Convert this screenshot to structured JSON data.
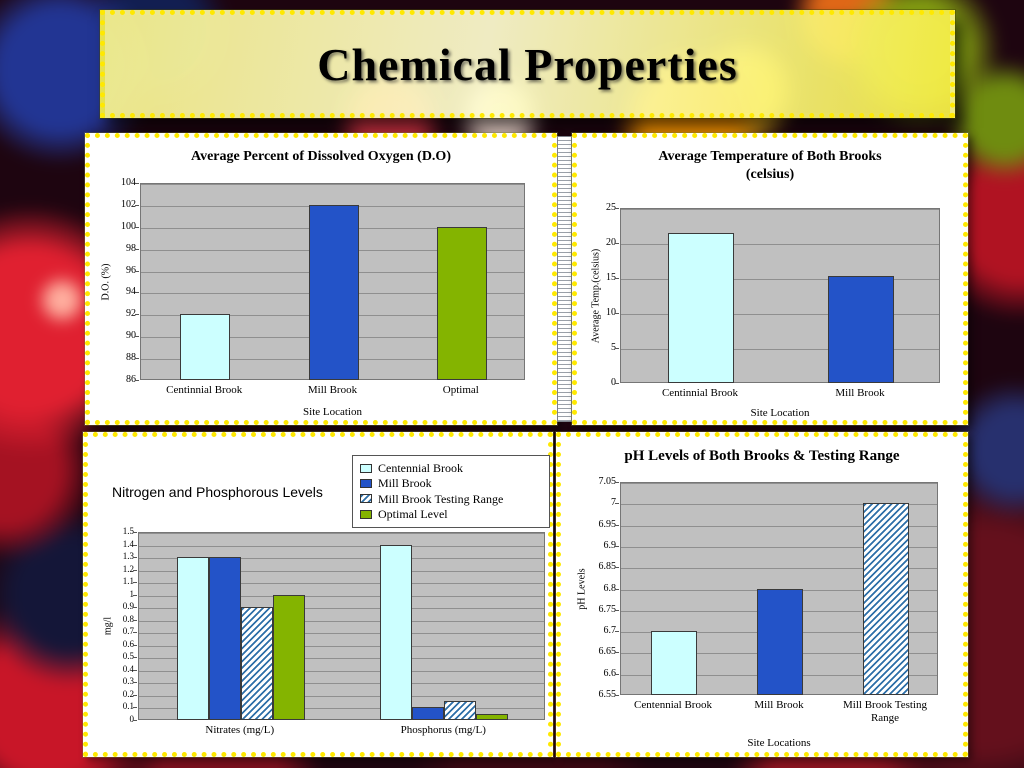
{
  "slide": {
    "title": "Chemical Properties"
  },
  "colors": {
    "centennial": "#CCFFFF",
    "mill": "#2353C8",
    "optimal": "#84B400",
    "hatch": "#2E6FA8",
    "panel_border": "#FFE900",
    "plot_bg": "#C0C0C0"
  },
  "chart_data": [
    {
      "type": "bar",
      "title": "Average Percent of Dissolved Oxygen (D.O)",
      "categories": [
        "Centinnial Brook",
        "Mill Brook",
        "Optimal"
      ],
      "series": [
        {
          "name": "",
          "values": [
            92,
            102,
            100
          ],
          "colors": [
            "#CCFFFF",
            "#2353C8",
            "#84B400"
          ]
        }
      ],
      "ylabel": "D.O. (%)",
      "xlabel": "Site Location",
      "ylim": [
        86,
        104
      ],
      "ystep": 2,
      "grid": true,
      "legend": false
    },
    {
      "type": "bar",
      "title": "Average Temperature of Both Brooks\n(celsius)",
      "categories": [
        "Centinnial Brook",
        "Mill Brook"
      ],
      "series": [
        {
          "name": "",
          "values": [
            21.4,
            15.3
          ],
          "colors": [
            "#CCFFFF",
            "#2353C8"
          ]
        }
      ],
      "ylabel": "Average Temp.(celsius)",
      "xlabel": "Site Location",
      "ylim": [
        0,
        25
      ],
      "ystep": 5,
      "grid": true,
      "legend": false
    },
    {
      "type": "bar",
      "title": "Nitrogen and Phosphorous Levels",
      "categories": [
        "Nitrates (mg/L)",
        "Phosphorus (mg/L)"
      ],
      "series": [
        {
          "name": "Centennial Brook",
          "color": "#CCFFFF",
          "values": [
            1.3,
            1.4
          ]
        },
        {
          "name": "Mill Brook",
          "color": "#2353C8",
          "values": [
            1.3,
            0.1
          ]
        },
        {
          "name": "Mill Brook Testing Range",
          "color": "hatch",
          "values": [
            0.9,
            0.15
          ]
        },
        {
          "name": "Optimal Level",
          "color": "#84B400",
          "values": [
            1.0,
            0.05
          ]
        }
      ],
      "ylabel": "mg/l",
      "xlabel": "",
      "ylim": [
        0,
        1.5
      ],
      "ystep": 0.1,
      "grid": true,
      "legend": true,
      "legend_position": "top-right"
    },
    {
      "type": "bar",
      "title": "pH Levels of Both Brooks & Testing Range",
      "categories": [
        "Centennial Brook",
        "Mill Brook",
        "Mill Brook Testing\nRange"
      ],
      "series": [
        {
          "name": "",
          "values": [
            6.7,
            6.8,
            7.0
          ],
          "colors": [
            "#CCFFFF",
            "#2353C8",
            "hatch"
          ]
        }
      ],
      "ylabel": "pH Levels",
      "xlabel": "Site Locations",
      "ylim": [
        6.55,
        7.05
      ],
      "ystep": 0.05,
      "grid": true,
      "legend": false
    }
  ]
}
